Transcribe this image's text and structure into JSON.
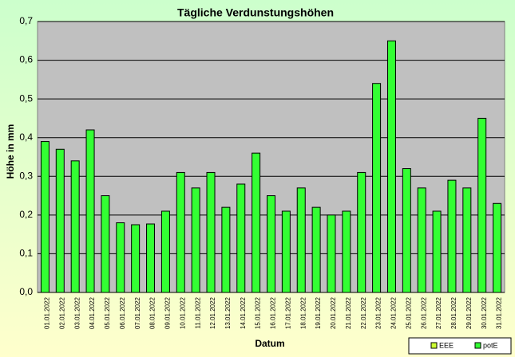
{
  "chart_data": {
    "type": "bar",
    "title": "Tägliche Verdunstungshöhen",
    "x_label": "Datum",
    "y_label": "Höhe in mm",
    "categories": [
      "01.01.2022",
      "02.01.2022",
      "03.01.2022",
      "04.01.2022",
      "05.01.2022",
      "06.01.2022",
      "07.01.2022",
      "08.01.2022",
      "09.01.2022",
      "10.01.2022",
      "11.01.2022",
      "12.01.2022",
      "13.01.2022",
      "14.01.2022",
      "15.01.2022",
      "16.01.2022",
      "17.01.2022",
      "18.01.2022",
      "19.01.2022",
      "20.01.2022",
      "21.01.2022",
      "22.01.2022",
      "23.01.2022",
      "24.01.2022",
      "25.01.2022",
      "26.01.2022",
      "27.01.2022",
      "28.01.2022",
      "29.01.2022",
      "30.01.2022",
      "31.01.2022"
    ],
    "series": [
      {
        "name": "EEE",
        "color": "#ccff33",
        "values": [
          null,
          null,
          null,
          null,
          null,
          null,
          null,
          null,
          null,
          null,
          null,
          null,
          null,
          null,
          null,
          null,
          null,
          null,
          null,
          null,
          null,
          null,
          null,
          null,
          null,
          null,
          null,
          null,
          null,
          null,
          null
        ]
      },
      {
        "name": "potE",
        "color": "#33ff33",
        "values": [
          0.39,
          0.37,
          0.34,
          0.42,
          0.25,
          0.18,
          0.175,
          0.177,
          0.21,
          0.31,
          0.27,
          0.31,
          0.22,
          0.28,
          0.36,
          0.25,
          0.21,
          0.27,
          0.22,
          0.2,
          0.21,
          0.31,
          0.54,
          0.65,
          0.32,
          0.27,
          0.21,
          0.29,
          0.27,
          0.45,
          0.23
        ]
      }
    ],
    "ylim": [
      0,
      0.7
    ],
    "yticks": [
      {
        "value": 0,
        "label": "0,0"
      },
      {
        "value": 0.1,
        "label": "0,1"
      },
      {
        "value": 0.2,
        "label": "0,2"
      },
      {
        "value": 0.3,
        "label": "0,3"
      },
      {
        "value": 0.4,
        "label": "0,4"
      },
      {
        "value": 0.5,
        "label": "0,5"
      },
      {
        "value": 0.6,
        "label": "0,6"
      },
      {
        "value": 0.7,
        "label": "0,7"
      }
    ],
    "grid": true,
    "legend": "bottom-right"
  }
}
